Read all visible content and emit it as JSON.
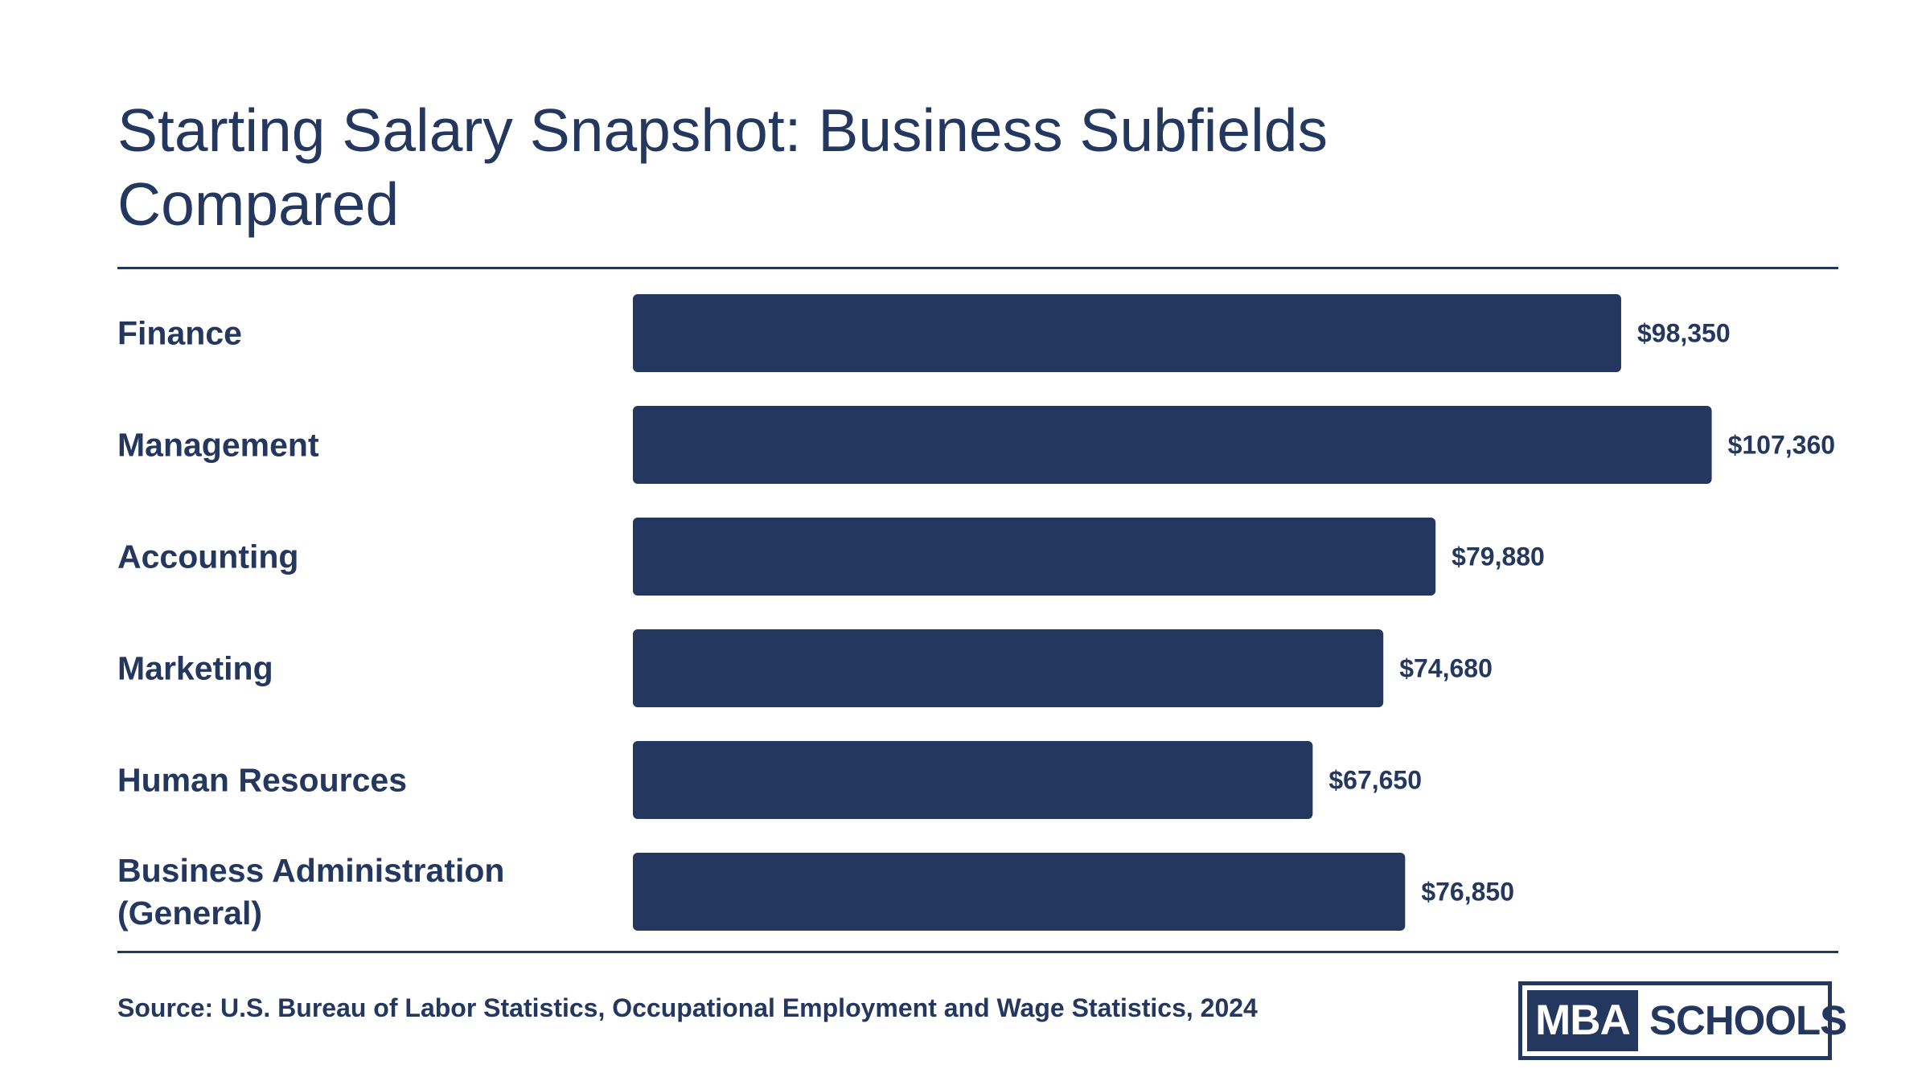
{
  "title": "Starting Salary Snapshot: Business Subfields Compared",
  "source": "Source: U.S. Bureau of Labor Statistics, Occupational Employment and Wage Statistics, 2024",
  "logo": {
    "mba": "MBA",
    "schools": "SCHOOLS"
  },
  "colors": {
    "bar": "#24375e",
    "text": "#24375e",
    "background": "#ffffff"
  },
  "chart_data": {
    "type": "bar",
    "orientation": "horizontal",
    "title": "Starting Salary Snapshot: Business Subfields Compared",
    "categories": [
      [
        "Finance"
      ],
      [
        "Management"
      ],
      [
        "Accounting"
      ],
      [
        "Marketing"
      ],
      [
        "Human Resources"
      ],
      [
        "Business Administration",
        "(General)"
      ]
    ],
    "values": [
      98350,
      107360,
      79880,
      74680,
      67650,
      76850
    ],
    "value_labels": [
      "$98,350",
      "$107,360",
      "$79,880",
      "$74,680",
      "$67,650",
      "$76,850"
    ],
    "xlim": [
      0,
      125000
    ],
    "grid": false,
    "legend": "none"
  }
}
